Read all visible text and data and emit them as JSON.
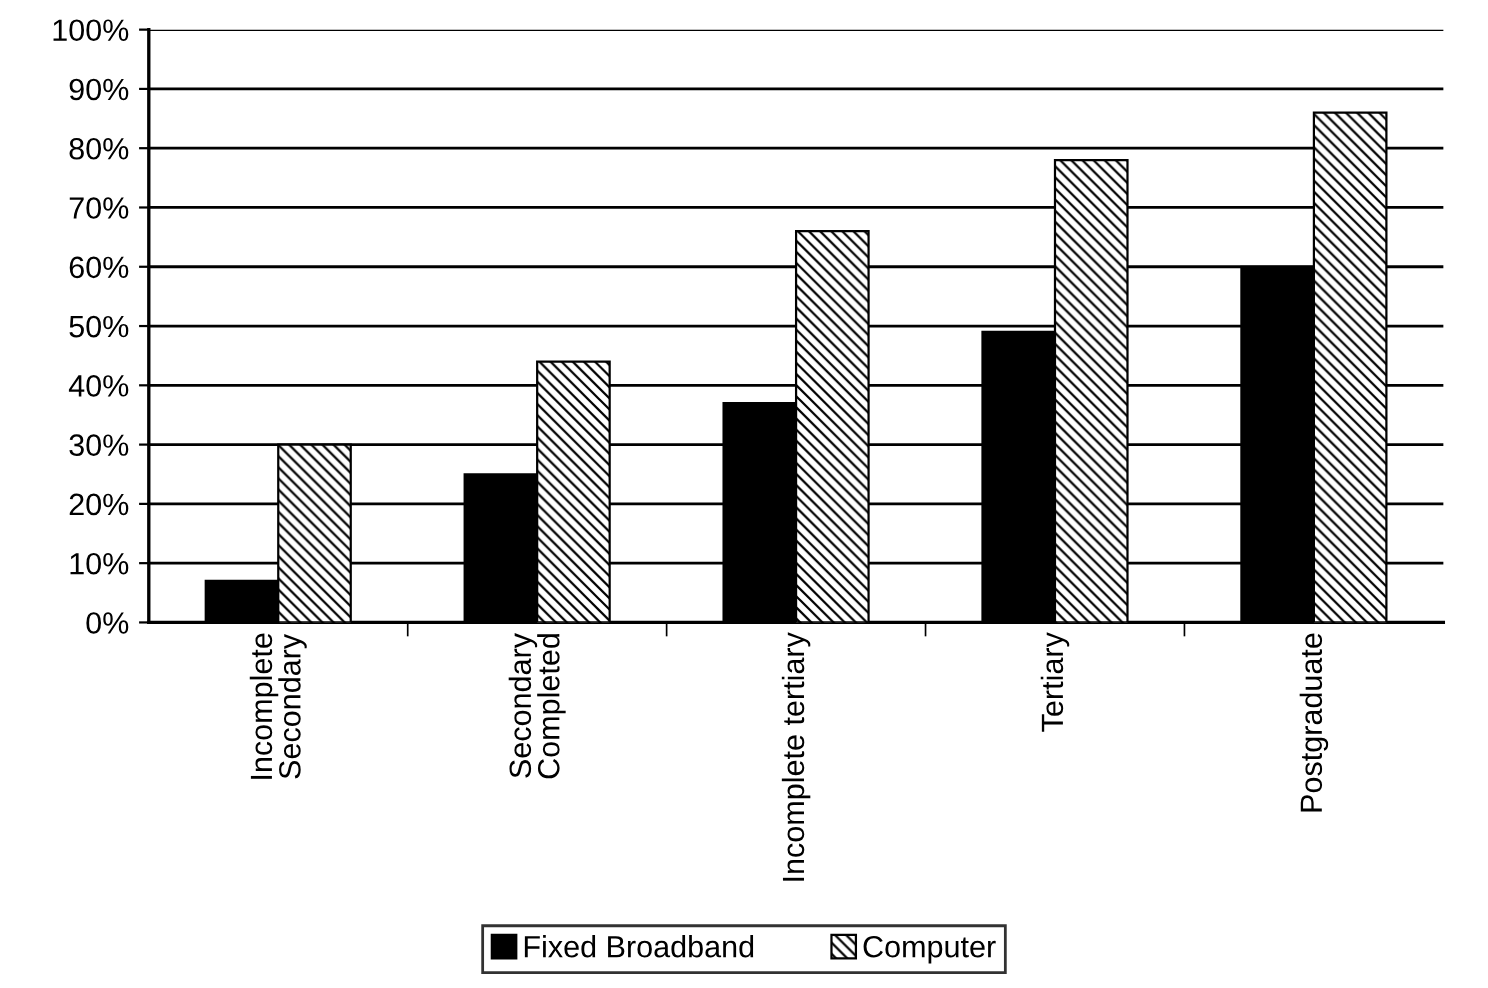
{
  "chart_data": {
    "type": "bar",
    "categories": [
      "Incomplete\nSecondary",
      "Secondary\nCompleted",
      "Incomplete tertiary",
      "Tertiary",
      "Postgraduate"
    ],
    "series": [
      {
        "name": "Fixed Broadband",
        "color": "#000000",
        "values": [
          7,
          25,
          37,
          49,
          60
        ]
      },
      {
        "name": "Computer",
        "color": "#000000",
        "values": [
          30,
          44,
          66,
          78,
          86
        ]
      }
    ],
    "ylim": [
      0,
      100
    ],
    "yticks": [
      {
        "value": 0,
        "label": "0%"
      },
      {
        "value": 10,
        "label": "10%"
      },
      {
        "value": 20,
        "label": "20%"
      },
      {
        "value": 30,
        "label": "30%"
      },
      {
        "value": 40,
        "label": "40%"
      },
      {
        "value": 50,
        "label": "50%"
      },
      {
        "value": 60,
        "label": "60%"
      },
      {
        "value": 70,
        "label": "70%"
      },
      {
        "value": 80,
        "label": "80%"
      },
      {
        "value": 90,
        "label": "90%"
      },
      {
        "value": 100,
        "label": "100%"
      }
    ],
    "grid": "y",
    "legend": "bottom"
  }
}
